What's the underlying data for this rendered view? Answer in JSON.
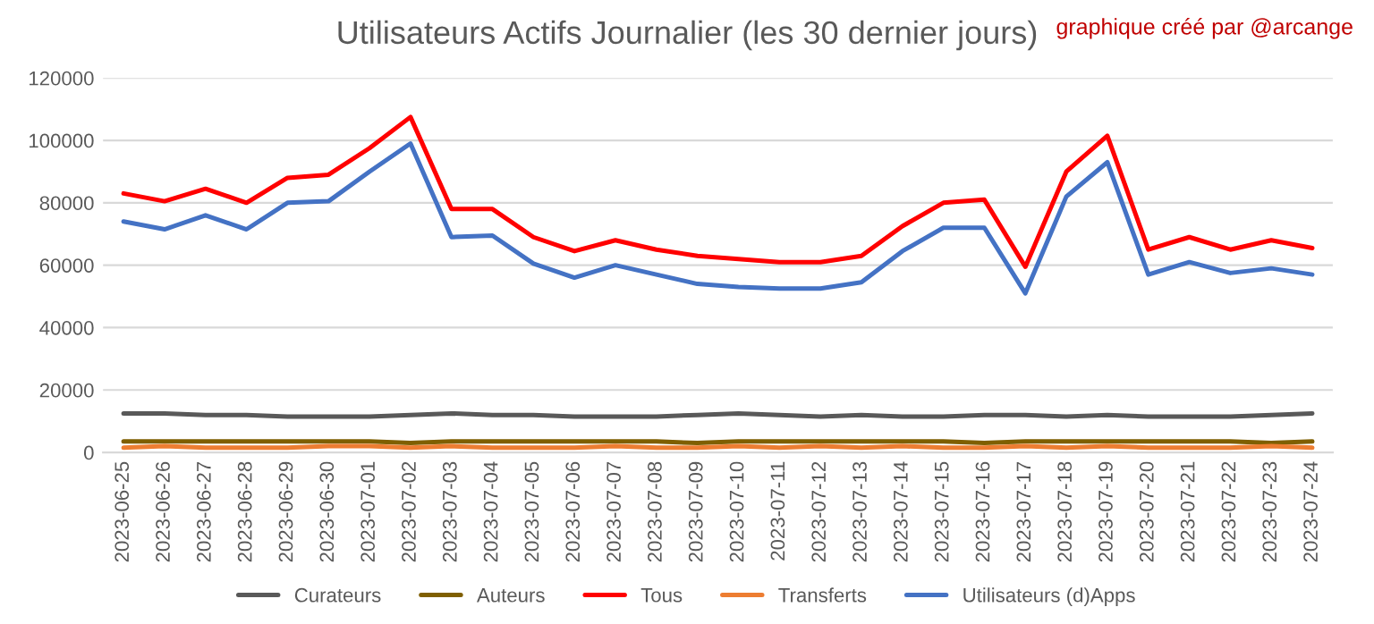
{
  "chart_data": {
    "type": "line",
    "title": "Utilisateurs Actifs Journalier (les 30 dernier jours)",
    "annotations": [
      "graphique créé par @arcange"
    ],
    "categories": [
      "2023-06-25",
      "2023-06-26",
      "2023-06-27",
      "2023-06-28",
      "2023-06-29",
      "2023-06-30",
      "2023-07-01",
      "2023-07-02",
      "2023-07-03",
      "2023-07-04",
      "2023-07-05",
      "2023-07-06",
      "2023-07-07",
      "2023-07-08",
      "2023-07-09",
      "2023-07-10",
      "2023-07-11",
      "2023-07-12",
      "2023-07-13",
      "2023-07-14",
      "2023-07-15",
      "2023-07-16",
      "2023-07-17",
      "2023-07-18",
      "2023-07-19",
      "2023-07-20",
      "2023-07-21",
      "2023-07-22",
      "2023-07-23",
      "2023-07-24"
    ],
    "series": [
      {
        "name": "Curateurs",
        "color": "#595959",
        "values": [
          12500,
          12500,
          12000,
          12000,
          11500,
          11500,
          11500,
          12000,
          12500,
          12000,
          12000,
          11500,
          11500,
          11500,
          12000,
          12500,
          12000,
          11500,
          12000,
          11500,
          11500,
          12000,
          12000,
          11500,
          12000,
          11500,
          11500,
          11500,
          12000,
          12500
        ]
      },
      {
        "name": "Auteurs",
        "color": "#7f5f00",
        "values": [
          3500,
          3500,
          3500,
          3500,
          3500,
          3500,
          3500,
          3000,
          3500,
          3500,
          3500,
          3500,
          3500,
          3500,
          3000,
          3500,
          3500,
          3500,
          3500,
          3500,
          3500,
          3000,
          3500,
          3500,
          3500,
          3500,
          3500,
          3500,
          3000,
          3500
        ]
      },
      {
        "name": "Tous",
        "color": "#ff0000",
        "values": [
          83000,
          80500,
          84500,
          80000,
          88000,
          89000,
          97500,
          107500,
          78000,
          78000,
          69000,
          64500,
          68000,
          65000,
          63000,
          62000,
          61000,
          61000,
          63000,
          72500,
          80000,
          81000,
          59500,
          90000,
          101500,
          65000,
          69000,
          65000,
          68000,
          65500
        ]
      },
      {
        "name": "Transferts",
        "color": "#ed7d31",
        "values": [
          1500,
          2000,
          1500,
          1500,
          1500,
          2000,
          2000,
          1500,
          2000,
          1500,
          1500,
          1500,
          2000,
          1500,
          1500,
          2000,
          1500,
          2000,
          1500,
          2000,
          1500,
          1500,
          2000,
          1500,
          2000,
          1500,
          1500,
          1500,
          2000,
          1500
        ]
      },
      {
        "name": "Utilisateurs (d)Apps",
        "color": "#4472c4",
        "values": [
          74000,
          71500,
          76000,
          71500,
          80000,
          80500,
          90000,
          99000,
          69000,
          69500,
          60500,
          56000,
          60000,
          57000,
          54000,
          53000,
          52500,
          52500,
          54500,
          64500,
          72000,
          72000,
          51000,
          82000,
          93000,
          57000,
          61000,
          57500,
          59000,
          57000
        ]
      }
    ],
    "ylim": [
      0,
      120000
    ],
    "yticks": [
      0,
      20000,
      40000,
      60000,
      80000,
      100000,
      120000
    ],
    "grid": "y",
    "legend": "bottom",
    "line_style": "solid"
  }
}
